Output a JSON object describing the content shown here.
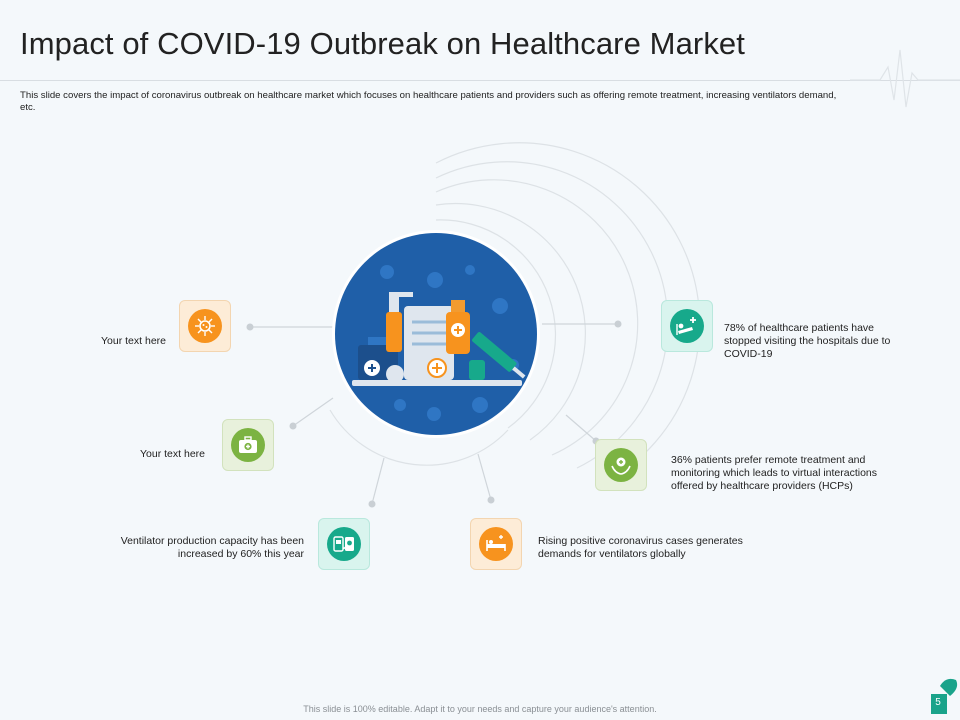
{
  "title": "Impact of COVID-19 Outbreak on Healthcare Market",
  "subtitle": "This slide covers the impact of coronavirus outbreak on healthcare market which focuses on healthcare patients and providers such as offering remote treatment, increasing ventilators demand, etc.",
  "items": [
    {
      "text": "Your text here",
      "icon": "virus-icon",
      "color": "#f7931e"
    },
    {
      "text": "Your text here",
      "icon": "first-aid-kit-icon",
      "color": "#7cb342"
    },
    {
      "text": "Ventilator production capacity has been increased by 60% this year",
      "icon": "ventilator-icon",
      "color": "#17a98b"
    },
    {
      "text": "Rising positive coronavirus cases generates demands for ventilators globally",
      "icon": "hospital-bed-icon",
      "color": "#f7931e"
    },
    {
      "text": "36% patients prefer remote treatment and monitoring which leads to virtual interactions offered by healthcare providers (HCPs)",
      "icon": "care-hands-icon",
      "color": "#7cb342"
    },
    {
      "text": "78% of healthcare patients have stopped visiting the hospitals due to COVID-19",
      "icon": "patient-bed-icon",
      "color": "#17a98b"
    }
  ],
  "center_illustration": "medicine-bottles-illustration",
  "footer": "This slide is 100% editable. Adapt it to your needs and capture your audience's attention.",
  "page_number": "5",
  "colors": {
    "accent_green": "#1aa38a",
    "center_blue": "#1f5fa8",
    "orange": "#f7931e",
    "lime": "#7cb342"
  }
}
